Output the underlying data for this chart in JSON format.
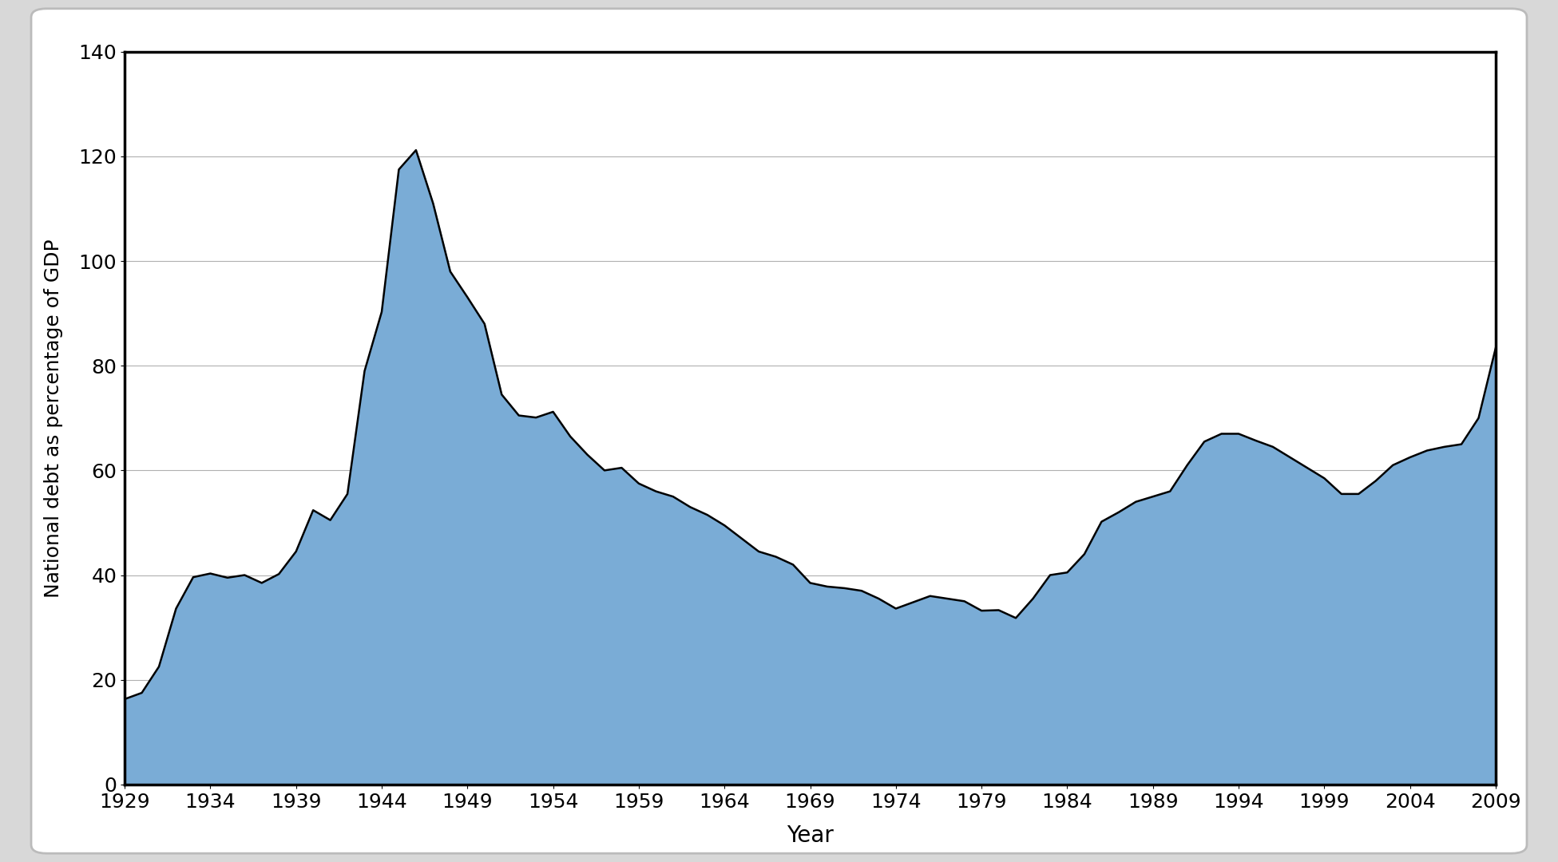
{
  "years": [
    1929,
    1930,
    1931,
    1932,
    1933,
    1934,
    1935,
    1936,
    1937,
    1938,
    1939,
    1940,
    1941,
    1942,
    1943,
    1944,
    1945,
    1946,
    1947,
    1948,
    1949,
    1950,
    1951,
    1952,
    1953,
    1954,
    1955,
    1956,
    1957,
    1958,
    1959,
    1960,
    1961,
    1962,
    1963,
    1964,
    1965,
    1966,
    1967,
    1968,
    1969,
    1970,
    1971,
    1972,
    1973,
    1974,
    1975,
    1976,
    1977,
    1978,
    1979,
    1980,
    1981,
    1982,
    1983,
    1984,
    1985,
    1986,
    1987,
    1988,
    1989,
    1990,
    1991,
    1992,
    1993,
    1994,
    1995,
    1996,
    1997,
    1998,
    1999,
    2000,
    2001,
    2002,
    2003,
    2004,
    2005,
    2006,
    2007,
    2008,
    2009
  ],
  "values": [
    16.3,
    17.5,
    22.5,
    33.6,
    39.6,
    40.3,
    39.5,
    40.0,
    38.5,
    40.2,
    44.5,
    52.4,
    50.5,
    55.5,
    79.0,
    90.3,
    117.5,
    121.2,
    111.0,
    98.0,
    93.1,
    88.0,
    74.5,
    70.5,
    70.1,
    71.2,
    66.5,
    63.0,
    60.0,
    60.5,
    57.5,
    56.0,
    55.0,
    53.0,
    51.5,
    49.5,
    47.0,
    44.5,
    43.5,
    42.0,
    38.5,
    37.8,
    37.5,
    37.0,
    35.5,
    33.6,
    34.8,
    36.0,
    35.5,
    35.0,
    33.2,
    33.3,
    31.8,
    35.5,
    40.0,
    40.5,
    44.0,
    50.2,
    52.0,
    54.0,
    55.0,
    56.0,
    61.0,
    65.5,
    67.0,
    67.0,
    65.7,
    64.5,
    62.5,
    60.5,
    58.5,
    55.5,
    55.5,
    58.0,
    61.0,
    62.5,
    63.8,
    64.5,
    65.0,
    70.0,
    83.4
  ],
  "fill_color": "#7aacd6",
  "line_color": "#000000",
  "background_color": "#ffffff",
  "outer_bg_color": "#d8d8d8",
  "xlabel": "Year",
  "ylabel": "National debt as percentage of GDP",
  "ylim": [
    0,
    140
  ],
  "xlim": [
    1929,
    2009
  ],
  "yticks": [
    0,
    20,
    40,
    60,
    80,
    100,
    120,
    140
  ],
  "xticks": [
    1929,
    1934,
    1939,
    1944,
    1949,
    1954,
    1959,
    1964,
    1969,
    1974,
    1979,
    1984,
    1989,
    1994,
    1999,
    2004,
    2009
  ],
  "line_width": 1.8,
  "grid_color": "#b0b0b0",
  "grid_linewidth": 0.8,
  "xlabel_fontsize": 20,
  "ylabel_fontsize": 18,
  "tick_fontsize": 18,
  "spine_linewidth": 2.5
}
